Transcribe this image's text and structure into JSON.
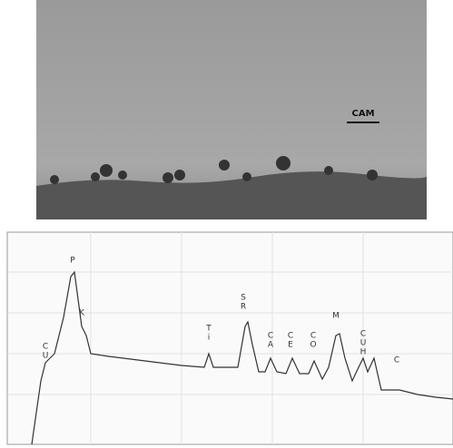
{
  "micrograph": {
    "scale_label": "CAM"
  },
  "spectrum": {
    "peak_labels": [
      "C",
      "U",
      "P",
      "K",
      "T",
      "i",
      "S",
      "R",
      "C",
      "A",
      "C",
      "E",
      "C",
      "O",
      "M",
      "C",
      "U",
      "H",
      "C"
    ]
  }
}
